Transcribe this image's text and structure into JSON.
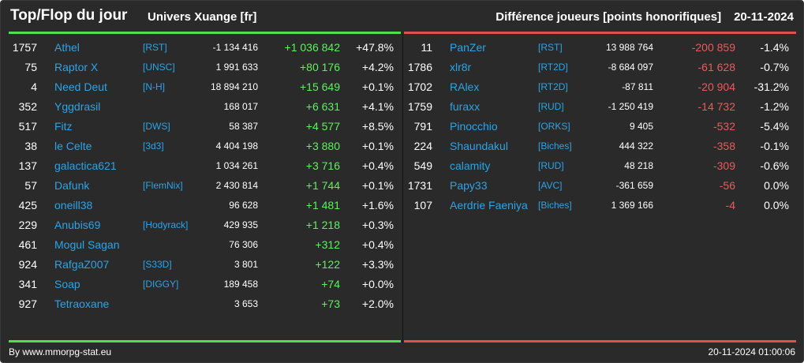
{
  "header": {
    "title": "Top/Flop du jour",
    "univers": "Univers Xuange [fr]",
    "metric": "Différence joueurs [points honorifiques]",
    "date": "20-11-2024"
  },
  "top": [
    {
      "rank": "1757",
      "name": "Athel",
      "tag": "[RST]",
      "points": "-1 134 416",
      "delta": "+1 036 842",
      "pct": "+47.8%"
    },
    {
      "rank": "75",
      "name": "Raptor X",
      "tag": "[UNSC]",
      "points": "1 991 633",
      "delta": "+80 176",
      "pct": "+4.2%"
    },
    {
      "rank": "4",
      "name": "Need Deut",
      "tag": "[N-H]",
      "points": "18 894 210",
      "delta": "+15 649",
      "pct": "+0.1%"
    },
    {
      "rank": "352",
      "name": "Yggdrasil",
      "tag": "",
      "points": "168 017",
      "delta": "+6 631",
      "pct": "+4.1%"
    },
    {
      "rank": "517",
      "name": "Fitz",
      "tag": "[DWS]",
      "points": "58 387",
      "delta": "+4 577",
      "pct": "+8.5%"
    },
    {
      "rank": "38",
      "name": "le Celte",
      "tag": "[3d3]",
      "points": "4 404 198",
      "delta": "+3 880",
      "pct": "+0.1%"
    },
    {
      "rank": "137",
      "name": "galactica621",
      "tag": "",
      "points": "1 034 261",
      "delta": "+3 716",
      "pct": "+0.4%"
    },
    {
      "rank": "57",
      "name": "Dafunk",
      "tag": "[FlemNix]",
      "points": "2 430 814",
      "delta": "+1 744",
      "pct": "+0.1%"
    },
    {
      "rank": "425",
      "name": "oneill38",
      "tag": "",
      "points": "96 628",
      "delta": "+1 481",
      "pct": "+1.6%"
    },
    {
      "rank": "229",
      "name": "Anubis69",
      "tag": "[Hodyrack]",
      "points": "429 935",
      "delta": "+1 218",
      "pct": "+0.3%"
    },
    {
      "rank": "461",
      "name": "Mogul Sagan",
      "tag": "",
      "points": "76 306",
      "delta": "+312",
      "pct": "+0.4%"
    },
    {
      "rank": "924",
      "name": "RafgaZ007",
      "tag": "[S33D]",
      "points": "3 801",
      "delta": "+122",
      "pct": "+3.3%"
    },
    {
      "rank": "341",
      "name": "Soap",
      "tag": "[DIGGY]",
      "points": "189 458",
      "delta": "+74",
      "pct": "+0.0%"
    },
    {
      "rank": "927",
      "name": "Tetraoxane",
      "tag": "",
      "points": "3 653",
      "delta": "+73",
      "pct": "+2.0%"
    }
  ],
  "flop": [
    {
      "rank": "11",
      "name": "PanZer",
      "tag": "[RST]",
      "points": "13 988 764",
      "delta": "-200 859",
      "pct": "-1.4%"
    },
    {
      "rank": "1786",
      "name": "xlr8r",
      "tag": "[RT2D]",
      "points": "-8 684 097",
      "delta": "-61 628",
      "pct": "-0.7%"
    },
    {
      "rank": "1702",
      "name": "RAlex",
      "tag": "[RT2D]",
      "points": "-87 811",
      "delta": "-20 904",
      "pct": "-31.2%"
    },
    {
      "rank": "1759",
      "name": "furaxx",
      "tag": "[RUD]",
      "points": "-1 250 419",
      "delta": "-14 732",
      "pct": "-1.2%"
    },
    {
      "rank": "791",
      "name": "Pinocchio",
      "tag": "[ORKS]",
      "points": "9 405",
      "delta": "-532",
      "pct": "-5.4%"
    },
    {
      "rank": "224",
      "name": "Shaundakul",
      "tag": "[Biches]",
      "points": "444 322",
      "delta": "-358",
      "pct": "-0.1%"
    },
    {
      "rank": "549",
      "name": "calamity",
      "tag": "[RUD]",
      "points": "48 218",
      "delta": "-309",
      "pct": "-0.6%"
    },
    {
      "rank": "1731",
      "name": "Papy33",
      "tag": "[AVC]",
      "points": "-361 659",
      "delta": "-56",
      "pct": "0.0%"
    },
    {
      "rank": "107",
      "name": "Aerdrie Faeniya",
      "tag": "[Biches]",
      "points": "1 369 166",
      "delta": "-4",
      "pct": "0.0%"
    }
  ],
  "footer": {
    "credit": "By www.mmorpg-stat.eu",
    "timestamp": "20-11-2024 01:00:06"
  },
  "colors": {
    "background": "#2a2a2a",
    "gain": "#5ff05f",
    "loss": "#e85b5b",
    "link": "#2aa4e8"
  }
}
